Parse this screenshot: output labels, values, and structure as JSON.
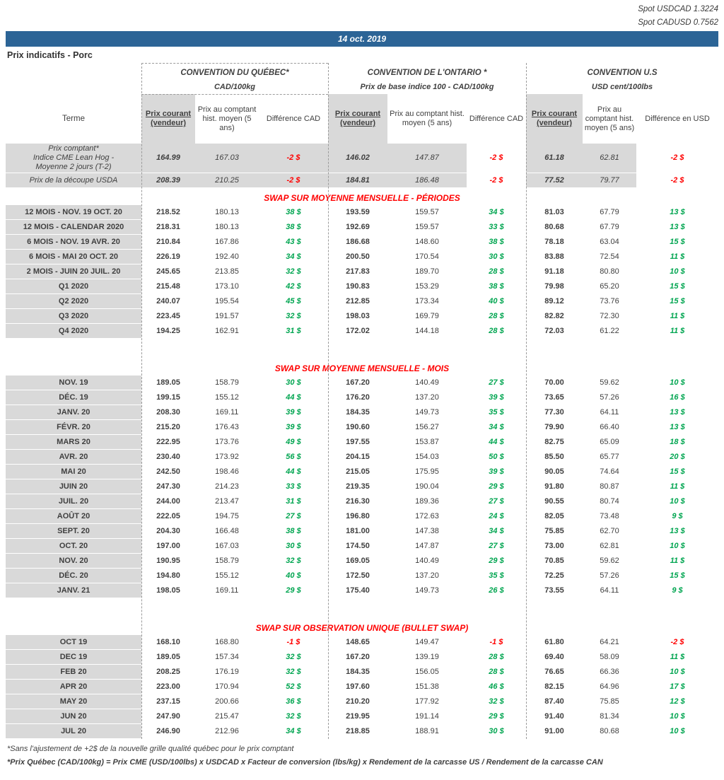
{
  "spot": {
    "usdcad": "Spot USDCAD 1.3224",
    "cadusd": "Spot CADUSD 0.7562"
  },
  "date": "14 oct. 2019",
  "page_title": "Prix indicatifs - Porc",
  "colors": {
    "header_blue": "#2c6496",
    "grey_fill": "#d9d9d9",
    "positive_green": "#00a550",
    "negative_red": "#ff0000"
  },
  "groups": {
    "quebec": {
      "title": "CONVENTION DU QUÉBEC*",
      "subtitle": "CAD/100kg"
    },
    "ontario": {
      "title": "CONVENTION DE L'ONTARIO *",
      "subtitle": "Prix de base indice 100 - CAD/100kg"
    },
    "us": {
      "title": "CONVENTION U.S",
      "subtitle": "USD cent/100lbs"
    }
  },
  "columns": {
    "terme": "Terme",
    "prix_courant": "Prix courant (vendeur)",
    "prix_comptant": "Prix au comptant hist. moyen (5 ans)",
    "difference_cad": "Différence CAD",
    "difference_usd": "Différence en USD"
  },
  "spot_rows": [
    {
      "terme": "Prix comptant*\nIndice CME Lean Hog -\nMoyenne 2 jours (T-2)",
      "values": [
        "164.99",
        "167.03",
        "-2 $",
        "146.02",
        "147.87",
        "-2 $",
        "61.18",
        "62.81",
        "-2 $"
      ]
    },
    {
      "terme": "Prix de la découpe USDA",
      "values": [
        "208.39",
        "210.25",
        "-2 $",
        "184.81",
        "186.48",
        "-2 $",
        "77.52",
        "79.77",
        "-2 $"
      ]
    }
  ],
  "sections": [
    {
      "title": "SWAP SUR MOYENNE MENSUELLE - PÉRIODES",
      "rows": [
        {
          "terme": "12 MOIS -  NOV. 19 OCT. 20",
          "values": [
            "218.52",
            "180.13",
            "38 $",
            "193.59",
            "159.57",
            "34 $",
            "81.03",
            "67.79",
            "13 $"
          ]
        },
        {
          "terme": "12 MOIS - CALENDAR 2020",
          "values": [
            "218.31",
            "180.13",
            "38 $",
            "192.69",
            "159.57",
            "33 $",
            "80.68",
            "67.79",
            "13 $"
          ]
        },
        {
          "terme": "6 MOIS -  NOV. 19 AVR. 20",
          "values": [
            "210.84",
            "167.86",
            "43 $",
            "186.68",
            "148.60",
            "38 $",
            "78.18",
            "63.04",
            "15 $"
          ]
        },
        {
          "terme": "6 MOIS -  MAI 20 OCT. 20",
          "values": [
            "226.19",
            "192.40",
            "34 $",
            "200.50",
            "170.54",
            "30 $",
            "83.88",
            "72.54",
            "11 $"
          ]
        },
        {
          "terme": "2 MOIS -  JUIN 20  JUIL. 20",
          "values": [
            "245.65",
            "213.85",
            "32 $",
            "217.83",
            "189.70",
            "28 $",
            "91.18",
            "80.80",
            "10 $"
          ]
        },
        {
          "terme": "Q1 2020",
          "values": [
            "215.48",
            "173.10",
            "42 $",
            "190.83",
            "153.29",
            "38 $",
            "79.98",
            "65.20",
            "15 $"
          ]
        },
        {
          "terme": "Q2 2020",
          "values": [
            "240.07",
            "195.54",
            "45 $",
            "212.85",
            "173.34",
            "40 $",
            "89.12",
            "73.76",
            "15 $"
          ]
        },
        {
          "terme": "Q3 2020",
          "values": [
            "223.45",
            "191.57",
            "32 $",
            "198.03",
            "169.79",
            "28 $",
            "82.82",
            "72.30",
            "11 $"
          ]
        },
        {
          "terme": "Q4 2020",
          "values": [
            "194.25",
            "162.91",
            "31 $",
            "172.02",
            "144.18",
            "28 $",
            "72.03",
            "61.22",
            "11 $"
          ]
        }
      ]
    },
    {
      "title": "SWAP SUR MOYENNE MENSUELLE - MOIS",
      "rows": [
        {
          "terme": "NOV. 19",
          "values": [
            "189.05",
            "158.79",
            "30 $",
            "167.20",
            "140.49",
            "27 $",
            "70.00",
            "59.62",
            "10 $"
          ]
        },
        {
          "terme": "DÉC. 19",
          "values": [
            "199.15",
            "155.12",
            "44 $",
            "176.20",
            "137.20",
            "39 $",
            "73.65",
            "57.26",
            "16 $"
          ]
        },
        {
          "terme": "JANV. 20",
          "values": [
            "208.30",
            "169.11",
            "39 $",
            "184.35",
            "149.73",
            "35 $",
            "77.30",
            "64.11",
            "13 $"
          ]
        },
        {
          "terme": "FÉVR. 20",
          "values": [
            "215.20",
            "176.43",
            "39 $",
            "190.60",
            "156.27",
            "34 $",
            "79.90",
            "66.40",
            "13 $"
          ]
        },
        {
          "terme": "MARS 20",
          "values": [
            "222.95",
            "173.76",
            "49 $",
            "197.55",
            "153.87",
            "44 $",
            "82.75",
            "65.09",
            "18 $"
          ]
        },
        {
          "terme": "AVR. 20",
          "values": [
            "230.40",
            "173.92",
            "56 $",
            "204.15",
            "154.03",
            "50 $",
            "85.50",
            "65.77",
            "20 $"
          ]
        },
        {
          "terme": "MAI 20",
          "values": [
            "242.50",
            "198.46",
            "44 $",
            "215.05",
            "175.95",
            "39 $",
            "90.05",
            "74.64",
            "15 $"
          ]
        },
        {
          "terme": "JUIN 20",
          "values": [
            "247.30",
            "214.23",
            "33 $",
            "219.35",
            "190.04",
            "29 $",
            "91.80",
            "80.87",
            "11 $"
          ]
        },
        {
          "terme": "JUIL. 20",
          "values": [
            "244.00",
            "213.47",
            "31 $",
            "216.30",
            "189.36",
            "27 $",
            "90.55",
            "80.74",
            "10 $"
          ]
        },
        {
          "terme": "AOÛT 20",
          "values": [
            "222.05",
            "194.75",
            "27 $",
            "196.80",
            "172.63",
            "24 $",
            "82.05",
            "73.48",
            "9 $"
          ]
        },
        {
          "terme": "SEPT. 20",
          "values": [
            "204.30",
            "166.48",
            "38 $",
            "181.00",
            "147.38",
            "34 $",
            "75.85",
            "62.70",
            "13 $"
          ]
        },
        {
          "terme": "OCT. 20",
          "values": [
            "197.00",
            "167.03",
            "30 $",
            "174.50",
            "147.87",
            "27 $",
            "73.00",
            "62.81",
            "10 $"
          ]
        },
        {
          "terme": "NOV. 20",
          "values": [
            "190.95",
            "158.79",
            "32 $",
            "169.05",
            "140.49",
            "29 $",
            "70.85",
            "59.62",
            "11 $"
          ]
        },
        {
          "terme": "DÉC. 20",
          "values": [
            "194.80",
            "155.12",
            "40 $",
            "172.50",
            "137.20",
            "35 $",
            "72.25",
            "57.26",
            "15 $"
          ]
        },
        {
          "terme": "JANV. 21",
          "values": [
            "198.05",
            "169.11",
            "29 $",
            "175.40",
            "149.73",
            "26 $",
            "73.55",
            "64.11",
            "9 $"
          ]
        }
      ]
    },
    {
      "title": "SWAP SUR OBSERVATION UNIQUE (BULLET SWAP)",
      "rows": [
        {
          "terme": "OCT 19",
          "values": [
            "168.10",
            "168.80",
            "-1 $",
            "148.65",
            "149.47",
            "-1 $",
            "61.80",
            "64.21",
            "-2 $"
          ]
        },
        {
          "terme": "DEC 19",
          "values": [
            "189.05",
            "157.34",
            "32 $",
            "167.20",
            "139.19",
            "28 $",
            "69.40",
            "58.09",
            "11 $"
          ]
        },
        {
          "terme": "FEB 20",
          "values": [
            "208.25",
            "176.19",
            "32 $",
            "184.35",
            "156.05",
            "28 $",
            "76.65",
            "66.36",
            "10 $"
          ]
        },
        {
          "terme": "APR 20",
          "values": [
            "223.00",
            "170.94",
            "52 $",
            "197.60",
            "151.38",
            "46 $",
            "82.15",
            "64.96",
            "17 $"
          ]
        },
        {
          "terme": "MAY 20",
          "values": [
            "237.15",
            "200.66",
            "36 $",
            "210.20",
            "177.92",
            "32 $",
            "87.40",
            "75.85",
            "12 $"
          ]
        },
        {
          "terme": "JUN 20",
          "values": [
            "247.90",
            "215.47",
            "32 $",
            "219.95",
            "191.14",
            "29 $",
            "91.40",
            "81.34",
            "10 $"
          ]
        },
        {
          "terme": "JUL 20",
          "values": [
            "246.90",
            "212.96",
            "34 $",
            "218.85",
            "188.91",
            "30 $",
            "91.00",
            "80.68",
            "10 $"
          ]
        }
      ]
    }
  ],
  "footnotes": {
    "fn1": "*Sans l'ajustement de +2$ de la nouvelle grille qualité québec pour le prix comptant",
    "fn2": "*Prix Québec (CAD/100kg) = Prix CME (USD/100lbs) x USDCAD x Facteur de conversion (lbs/kg) x Rendement de la carcasse US / Rendement de la carcasse CAN"
  }
}
